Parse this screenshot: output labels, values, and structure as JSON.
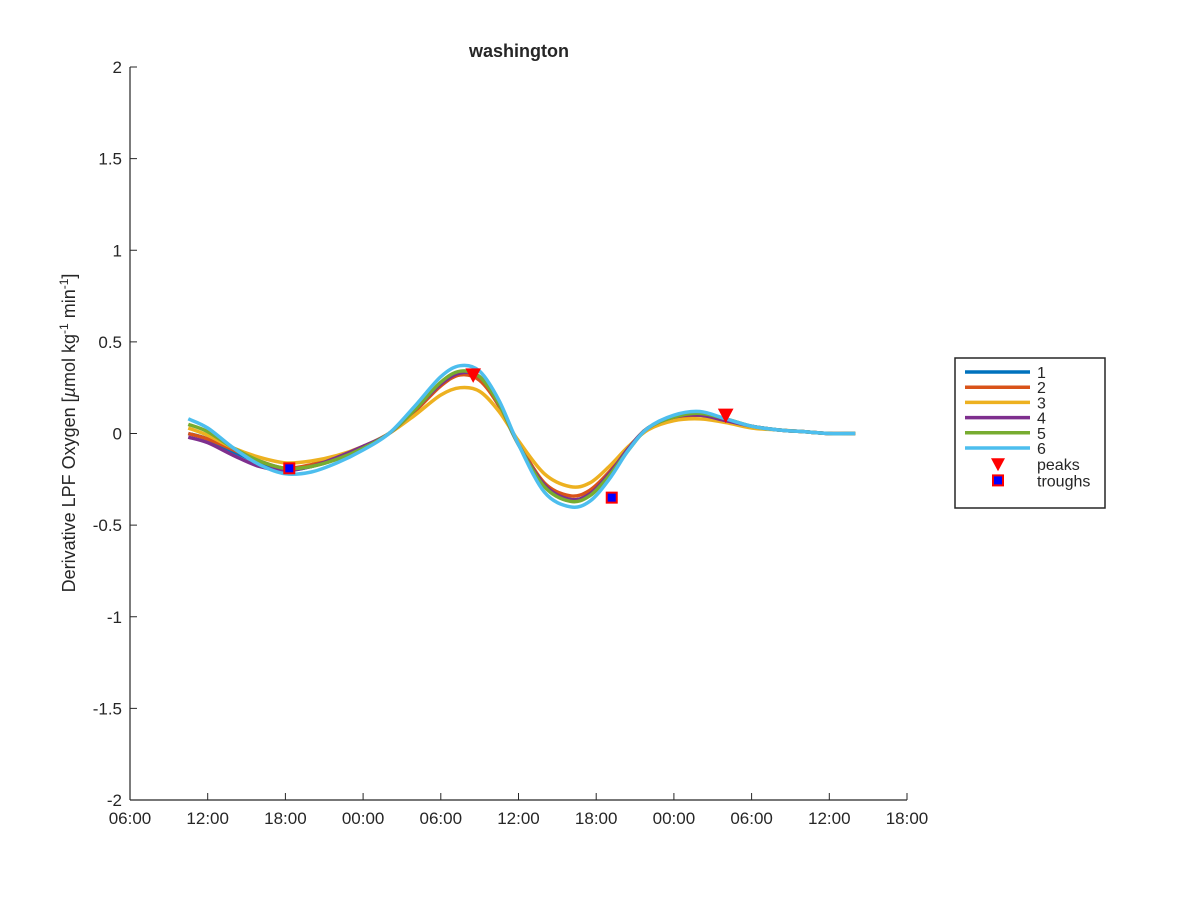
{
  "chart_data": {
    "type": "line",
    "title": "washington",
    "xlabel": "",
    "ylabel_parts": [
      "Derivative LPF Oxygen [",
      "µ",
      "mol kg",
      "-1",
      " min",
      "-1",
      "]"
    ],
    "xlim_hours": [
      0,
      60
    ],
    "ylim": [
      -2,
      2
    ],
    "x_ticks": [
      {
        "h": 0,
        "label": "06:00"
      },
      {
        "h": 6,
        "label": "12:00"
      },
      {
        "h": 12,
        "label": "18:00"
      },
      {
        "h": 18,
        "label": "00:00"
      },
      {
        "h": 24,
        "label": "06:00"
      },
      {
        "h": 30,
        "label": "12:00"
      },
      {
        "h": 36,
        "label": "18:00"
      },
      {
        "h": 42,
        "label": "00:00"
      },
      {
        "h": 48,
        "label": "06:00"
      },
      {
        "h": 54,
        "label": "12:00"
      },
      {
        "h": 60,
        "label": "18:00"
      }
    ],
    "y_ticks": [
      {
        "v": 2,
        "label": "2"
      },
      {
        "v": 1.5,
        "label": "1.5"
      },
      {
        "v": 1,
        "label": "1"
      },
      {
        "v": 0.5,
        "label": "0.5"
      },
      {
        "v": 0,
        "label": "0"
      },
      {
        "v": -0.5,
        "label": "-0.5"
      },
      {
        "v": -1,
        "label": "-1"
      },
      {
        "v": -1.5,
        "label": "-1.5"
      },
      {
        "v": -2,
        "label": "-2"
      }
    ],
    "grid": false,
    "legend_placement": "outside-right",
    "series": [
      {
        "name": "1",
        "color": "#0072BD",
        "x": [
          4.5,
          6,
          8,
          10,
          12,
          14,
          16,
          18,
          20,
          22,
          24,
          25.5,
          27,
          28.5,
          30,
          32,
          34,
          35.5,
          37,
          38.5,
          40,
          42,
          44,
          46,
          48,
          50,
          52,
          54,
          56
        ],
        "y": [
          0.0,
          -0.03,
          -0.1,
          -0.16,
          -0.2,
          -0.18,
          -0.14,
          -0.08,
          0.0,
          0.13,
          0.27,
          0.33,
          0.3,
          0.15,
          -0.06,
          -0.28,
          -0.36,
          -0.33,
          -0.22,
          -0.08,
          0.03,
          0.09,
          0.1,
          0.07,
          0.04,
          0.02,
          0.01,
          0.0,
          0.0
        ]
      },
      {
        "name": "2",
        "color": "#D95319",
        "x": [
          4.5,
          6,
          8,
          10,
          12,
          14,
          16,
          18,
          20,
          22,
          24,
          25.5,
          27,
          28.5,
          30,
          32,
          34,
          35.5,
          37,
          38.5,
          40,
          42,
          44,
          46,
          48,
          50,
          52,
          54,
          56
        ],
        "y": [
          0.0,
          -0.03,
          -0.09,
          -0.15,
          -0.19,
          -0.17,
          -0.13,
          -0.08,
          0.0,
          0.12,
          0.26,
          0.32,
          0.29,
          0.15,
          -0.05,
          -0.27,
          -0.34,
          -0.31,
          -0.21,
          -0.08,
          0.03,
          0.08,
          0.1,
          0.07,
          0.04,
          0.02,
          0.01,
          0.0,
          0.0
        ]
      },
      {
        "name": "3",
        "color": "#EDB120",
        "x": [
          4.5,
          6,
          8,
          10,
          12,
          14,
          16,
          18,
          20,
          22,
          24,
          25.5,
          27,
          28.5,
          30,
          32,
          34,
          35.5,
          37,
          38.5,
          40,
          42,
          44,
          46,
          48,
          50,
          52,
          54,
          56
        ],
        "y": [
          0.03,
          -0.01,
          -0.08,
          -0.13,
          -0.16,
          -0.15,
          -0.12,
          -0.07,
          0.0,
          0.1,
          0.21,
          0.25,
          0.23,
          0.12,
          -0.04,
          -0.22,
          -0.29,
          -0.27,
          -0.18,
          -0.07,
          0.02,
          0.07,
          0.08,
          0.06,
          0.03,
          0.02,
          0.01,
          0.0,
          0.0
        ]
      },
      {
        "name": "4",
        "color": "#7E2F8E",
        "x": [
          4.5,
          6,
          8,
          10,
          12,
          14,
          16,
          18,
          20,
          22,
          24,
          25.5,
          27,
          28.5,
          30,
          32,
          34,
          35.5,
          37,
          38.5,
          40,
          42,
          44,
          46,
          48,
          50,
          52,
          54,
          56
        ],
        "y": [
          -0.02,
          -0.05,
          -0.12,
          -0.18,
          -0.2,
          -0.18,
          -0.13,
          -0.07,
          0.0,
          0.13,
          0.27,
          0.33,
          0.31,
          0.16,
          -0.06,
          -0.28,
          -0.36,
          -0.33,
          -0.22,
          -0.08,
          0.03,
          0.09,
          0.1,
          0.07,
          0.04,
          0.02,
          0.01,
          0.0,
          0.0
        ]
      },
      {
        "name": "5",
        "color": "#77AC30",
        "x": [
          4.5,
          6,
          8,
          10,
          12,
          14,
          16,
          18,
          20,
          22,
          24,
          25.5,
          27,
          28.5,
          30,
          32,
          34,
          35.5,
          37,
          38.5,
          40,
          42,
          44,
          46,
          48,
          50,
          52,
          54,
          56
        ],
        "y": [
          0.05,
          0.01,
          -0.08,
          -0.15,
          -0.19,
          -0.18,
          -0.14,
          -0.08,
          0.0,
          0.13,
          0.28,
          0.34,
          0.31,
          0.16,
          -0.06,
          -0.29,
          -0.37,
          -0.34,
          -0.23,
          -0.09,
          0.03,
          0.09,
          0.11,
          0.08,
          0.04,
          0.02,
          0.01,
          0.0,
          0.0
        ]
      },
      {
        "name": "6",
        "color": "#4DBEEE",
        "x": [
          4.5,
          6,
          8,
          10,
          12,
          14,
          16,
          18,
          20,
          22,
          24,
          25.5,
          27,
          28.5,
          30,
          32,
          34,
          35.5,
          37,
          38.5,
          40,
          42,
          44,
          46,
          48,
          50,
          52,
          54,
          56
        ],
        "y": [
          0.08,
          0.03,
          -0.08,
          -0.17,
          -0.22,
          -0.21,
          -0.16,
          -0.09,
          0.0,
          0.15,
          0.31,
          0.37,
          0.34,
          0.18,
          -0.06,
          -0.32,
          -0.4,
          -0.37,
          -0.25,
          -0.09,
          0.03,
          0.1,
          0.12,
          0.08,
          0.04,
          0.02,
          0.01,
          0.0,
          0.0
        ]
      }
    ],
    "peaks": {
      "name": "peaks",
      "color": "#FF0000",
      "x": [
        26.5,
        46
      ],
      "y": [
        0.32,
        0.1
      ]
    },
    "troughs": {
      "name": "troughs",
      "fill": "#0000FF",
      "edge": "#FF0000",
      "x": [
        12.3,
        37.2
      ],
      "y": [
        -0.19,
        -0.35
      ]
    }
  }
}
